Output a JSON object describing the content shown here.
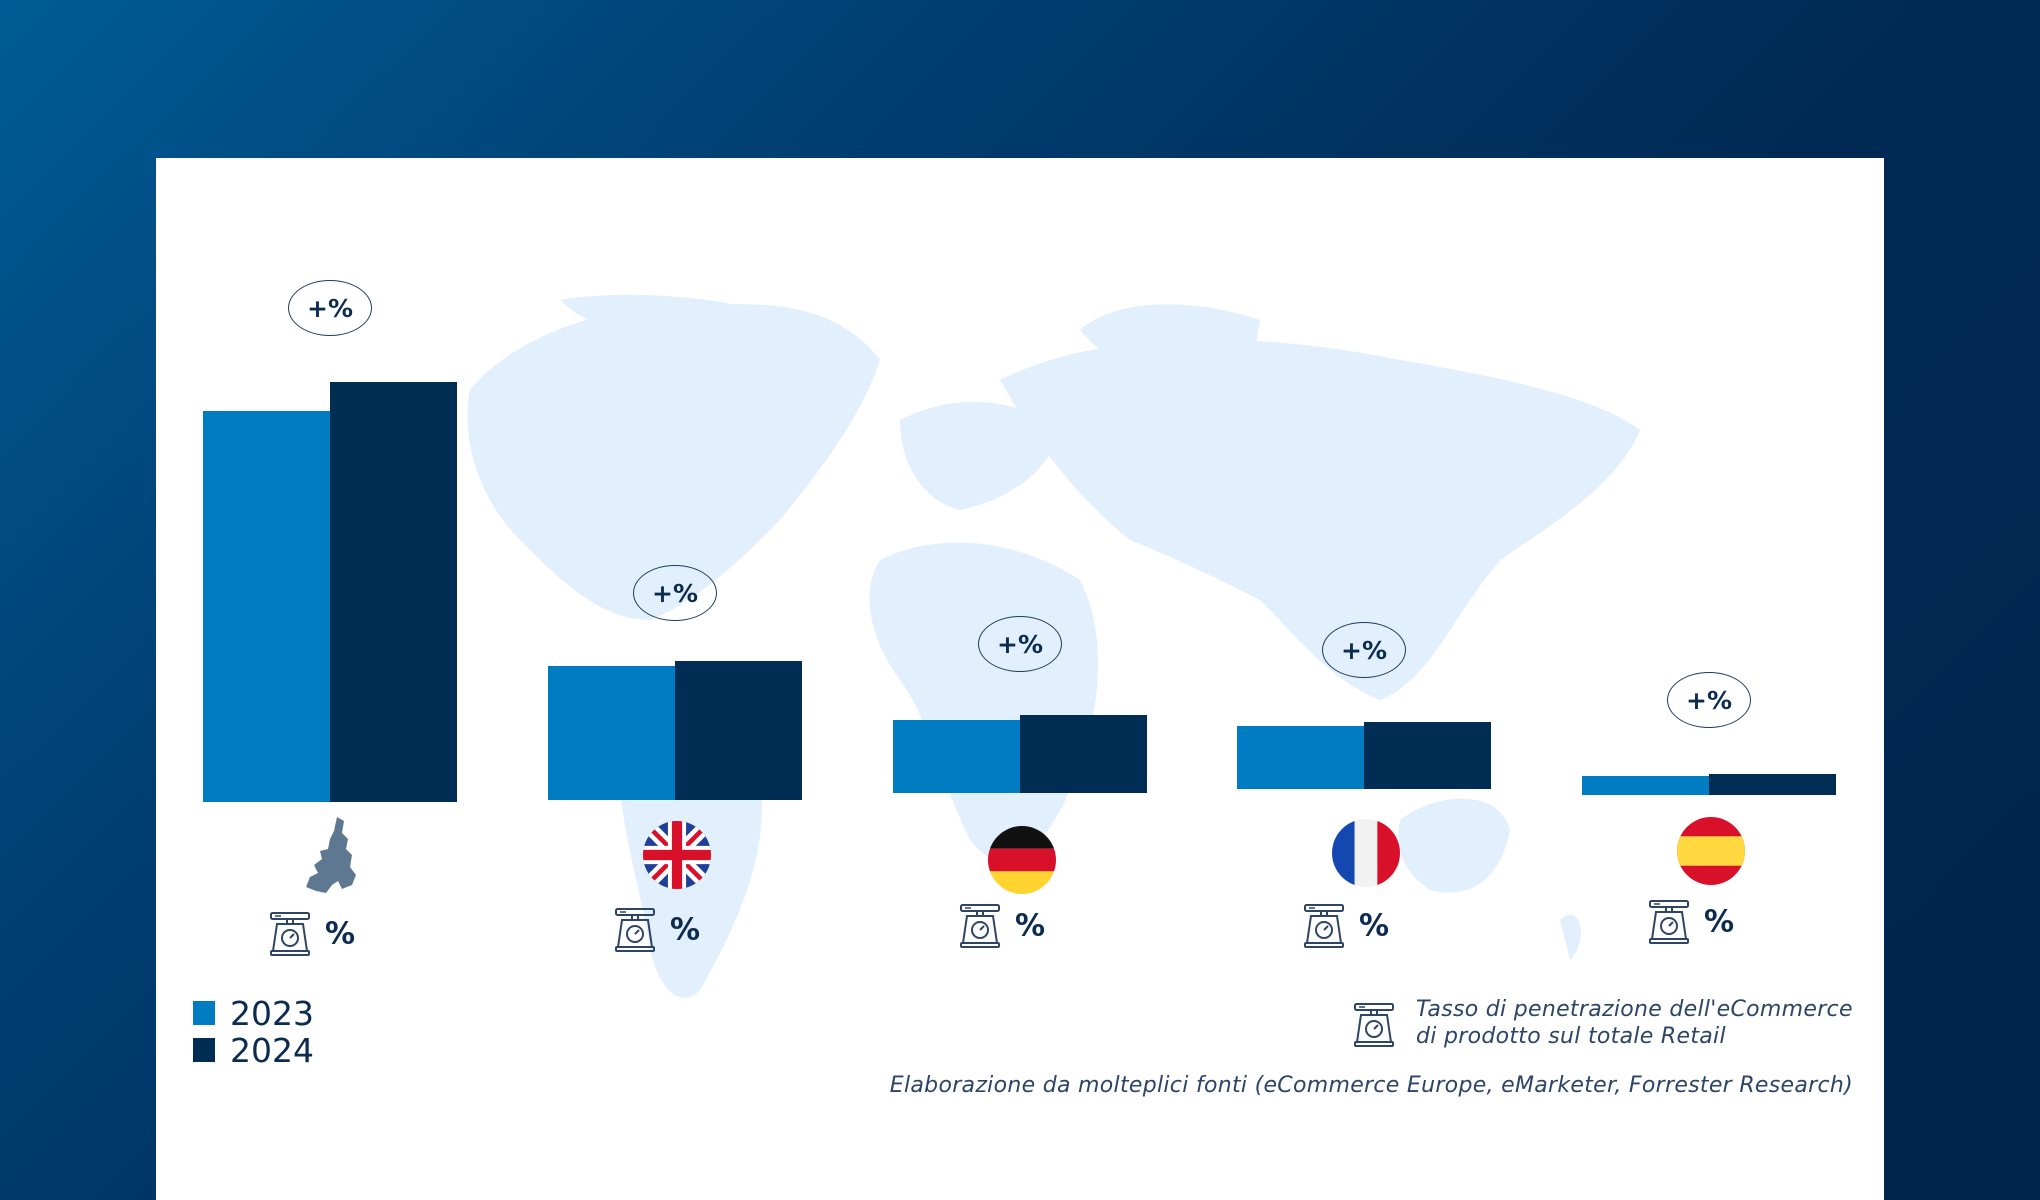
{
  "colors": {
    "series_2023": "#007cc2",
    "series_2024": "#002d54",
    "map": "#e2effc",
    "background_start": "#005b96",
    "background_end": "#00254d"
  },
  "chart_data": {
    "type": "bar",
    "categories": [
      "EU",
      "UK",
      "Germany",
      "France",
      "Spain"
    ],
    "category_icons": [
      "eu-map-icon",
      "uk-flag-icon",
      "germany-flag-icon",
      "france-flag-icon",
      "spain-flag-icon"
    ],
    "series": [
      {
        "name": "2023",
        "values": [
          93,
          32,
          17.5,
          15,
          4.5
        ]
      },
      {
        "name": "2024",
        "values": [
          100,
          33,
          18.5,
          16,
          5
        ]
      }
    ],
    "value_units": "relative bar height (no axis or values printed)",
    "growth_labels": [
      "+%",
      "+%",
      "+%",
      "+%",
      "+%"
    ],
    "penetration_labels": [
      "%",
      "%",
      "%",
      "%",
      "%"
    ],
    "grid": false,
    "legend_placement": "bottom-left"
  },
  "legend": {
    "items": [
      "2023",
      "2024"
    ]
  },
  "notes": {
    "penetration_line1": "Tasso di penetrazione dell'eCommerce",
    "penetration_line2": "di prodotto sul totale Retail",
    "source": "Elaborazione da molteplici fonti (eCommerce Europe, eMarketer, Forrester Research)"
  }
}
